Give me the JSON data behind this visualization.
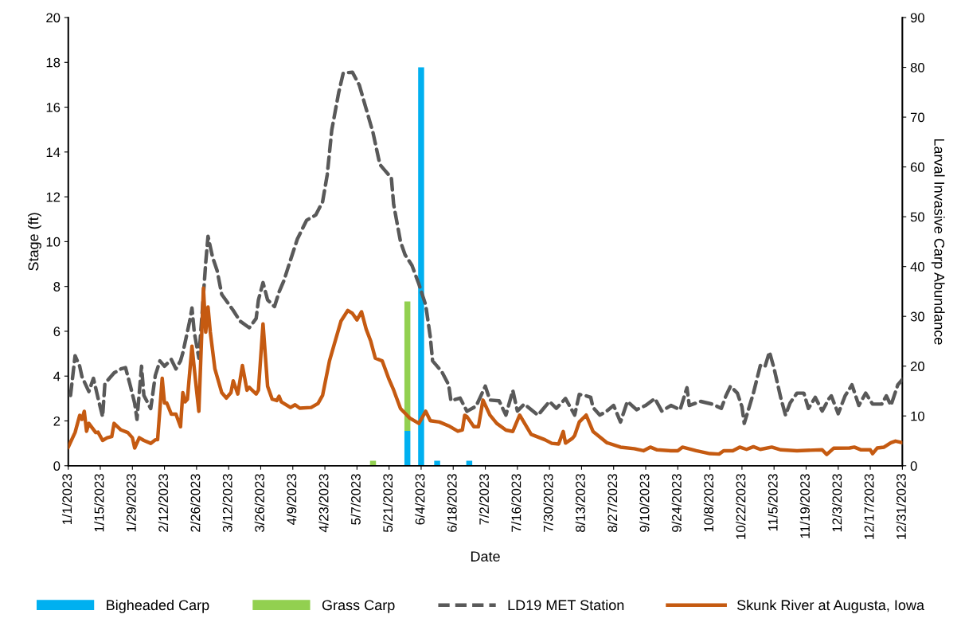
{
  "chart_data": {
    "type": "line",
    "xlabel": "Date",
    "ylabel": "Stage (ft)",
    "y2label": "Larval Invasive Carp Abundance",
    "xlim": [
      "2023-01-01",
      "2023-12-31"
    ],
    "xticks": [
      {
        "value": "2023-01-01",
        "label": "1/1/2023"
      },
      {
        "value": "2023-01-15",
        "label": "1/15/2023"
      },
      {
        "value": "2023-01-29",
        "label": "1/29/2023"
      },
      {
        "value": "2023-02-12",
        "label": "2/12/2023"
      },
      {
        "value": "2023-02-26",
        "label": "2/26/2023"
      },
      {
        "value": "2023-03-12",
        "label": "3/12/2023"
      },
      {
        "value": "2023-03-26",
        "label": "3/26/2023"
      },
      {
        "value": "2023-04-09",
        "label": "4/9/2023"
      },
      {
        "value": "2023-04-23",
        "label": "4/23/2023"
      },
      {
        "value": "2023-05-07",
        "label": "5/7/2023"
      },
      {
        "value": "2023-05-21",
        "label": "5/21/2023"
      },
      {
        "value": "2023-06-04",
        "label": "6/4/2023"
      },
      {
        "value": "2023-06-18",
        "label": "6/18/2023"
      },
      {
        "value": "2023-07-02",
        "label": "7/2/2023"
      },
      {
        "value": "2023-07-16",
        "label": "7/16/2023"
      },
      {
        "value": "2023-07-30",
        "label": "7/30/2023"
      },
      {
        "value": "2023-08-13",
        "label": "8/13/2023"
      },
      {
        "value": "2023-08-27",
        "label": "8/27/2023"
      },
      {
        "value": "2023-09-10",
        "label": "9/10/2023"
      },
      {
        "value": "2023-09-24",
        "label": "9/24/2023"
      },
      {
        "value": "2023-10-08",
        "label": "10/8/2023"
      },
      {
        "value": "2023-10-22",
        "label": "10/22/2023"
      },
      {
        "value": "2023-11-05",
        "label": "11/5/2023"
      },
      {
        "value": "2023-11-19",
        "label": "11/19/2023"
      },
      {
        "value": "2023-12-03",
        "label": "12/3/2023"
      },
      {
        "value": "2023-12-17",
        "label": "12/17/2023"
      },
      {
        "value": "2023-12-31",
        "label": "12/31/2023"
      }
    ],
    "ylim": [
      0,
      20
    ],
    "yticks": [
      0,
      2,
      4,
      6,
      8,
      10,
      12,
      14,
      16,
      18,
      20
    ],
    "y2lim": [
      0,
      90
    ],
    "y2ticks": [
      0,
      10,
      20,
      30,
      40,
      50,
      60,
      70,
      80,
      90
    ],
    "grid": false,
    "legend": "bottom",
    "marker": "none",
    "series": [
      {
        "name": "Bigheaded Carp",
        "type": "bar",
        "axis": "y2",
        "color": "#00b0f0",
        "x": [
          "2023-05-29",
          "2023-06-04",
          "2023-06-11",
          "2023-06-25"
        ],
        "values": [
          7,
          80,
          1,
          1
        ]
      },
      {
        "name": "Grass Carp",
        "type": "bar",
        "axis": "y2",
        "color": "#92d050",
        "x": [
          "2023-05-14",
          "2023-05-29"
        ],
        "values": [
          1,
          26
        ],
        "base": [
          0,
          7
        ]
      },
      {
        "name": "LD19 MET Station",
        "line_style": "dashed",
        "color": "#595959",
        "x": [
          "2023-01-02",
          "2023-01-04",
          "2023-01-06",
          "2023-01-07",
          "2023-01-10",
          "2023-01-12",
          "2023-01-14",
          "2023-01-16",
          "2023-01-17",
          "2023-01-21",
          "2023-01-24",
          "2023-01-26",
          "2023-01-28",
          "2023-01-30",
          "2023-01-31",
          "2023-02-02",
          "2023-02-03",
          "2023-02-06",
          "2023-02-08",
          "2023-02-10",
          "2023-02-12",
          "2023-02-15",
          "2023-02-17",
          "2023-02-19",
          "2023-02-20",
          "2023-02-23",
          "2023-02-24",
          "2023-02-25",
          "2023-02-27",
          "2023-03-01",
          "2023-03-02",
          "2023-03-03",
          "2023-03-05",
          "2023-03-07",
          "2023-03-09",
          "2023-03-12",
          "2023-03-14",
          "2023-03-17",
          "2023-03-21",
          "2023-03-24",
          "2023-03-25",
          "2023-03-27",
          "2023-03-29",
          "2023-04-01",
          "2023-04-03",
          "2023-04-05",
          "2023-04-08",
          "2023-04-11",
          "2023-04-15",
          "2023-04-19",
          "2023-04-22",
          "2023-04-24",
          "2023-04-26",
          "2023-04-29",
          "2023-05-01",
          "2023-05-05",
          "2023-05-08",
          "2023-05-11",
          "2023-05-14",
          "2023-05-17",
          "2023-05-19",
          "2023-05-22",
          "2023-05-23",
          "2023-05-26",
          "2023-05-28",
          "2023-05-31",
          "2023-06-03",
          "2023-06-06",
          "2023-06-08",
          "2023-06-09",
          "2023-06-13",
          "2023-06-16",
          "2023-06-17",
          "2023-06-21",
          "2023-06-24",
          "2023-06-28",
          "2023-07-02",
          "2023-07-04",
          "2023-07-08",
          "2023-07-11",
          "2023-07-14",
          "2023-07-16",
          "2023-07-19",
          "2023-07-25",
          "2023-07-30",
          "2023-08-02",
          "2023-08-06",
          "2023-08-10",
          "2023-08-12",
          "2023-08-15",
          "2023-08-17",
          "2023-08-18",
          "2023-08-21",
          "2023-08-24",
          "2023-08-27",
          "2023-08-30",
          "2023-09-02",
          "2023-09-06",
          "2023-09-10",
          "2023-09-14",
          "2023-09-17",
          "2023-09-21",
          "2023-09-25",
          "2023-09-28",
          "2023-09-29",
          "2023-10-04",
          "2023-10-09",
          "2023-10-13",
          "2023-10-15",
          "2023-10-17",
          "2023-10-20",
          "2023-10-22",
          "2023-10-23",
          "2023-10-27",
          "2023-10-30",
          "2023-11-01",
          "2023-11-03",
          "2023-11-05",
          "2023-11-08",
          "2023-11-10",
          "2023-11-12",
          "2023-11-15",
          "2023-11-18",
          "2023-11-20",
          "2023-11-23",
          "2023-11-26",
          "2023-11-29",
          "2023-11-30",
          "2023-12-03",
          "2023-12-06",
          "2023-12-09",
          "2023-12-12",
          "2023-12-15",
          "2023-12-18",
          "2023-12-22",
          "2023-12-24",
          "2023-12-26",
          "2023-12-29",
          "2023-12-31"
        ],
        "values": [
          3.14,
          4.91,
          4.44,
          3.97,
          3.31,
          3.9,
          3.02,
          2.19,
          3.67,
          4.14,
          4.32,
          4.38,
          3.61,
          2.78,
          2.07,
          4.44,
          3.14,
          2.55,
          4.03,
          4.68,
          4.44,
          4.74,
          4.32,
          4.68,
          5.03,
          6.45,
          7.04,
          5.96,
          4.8,
          7.63,
          9.06,
          10.24,
          9.3,
          8.7,
          7.64,
          7.22,
          6.93,
          6.45,
          6.16,
          6.57,
          7.4,
          8.17,
          7.4,
          7.1,
          7.75,
          8.23,
          9.18,
          10.12,
          10.95,
          11.19,
          11.78,
          12.97,
          14.98,
          16.64,
          17.52,
          17.56,
          16.99,
          15.93,
          14.86,
          13.44,
          13.2,
          12.85,
          11.66,
          10.0,
          9.41,
          8.94,
          8.11,
          7.17,
          5.74,
          4.68,
          4.2,
          3.61,
          2.9,
          3.02,
          2.43,
          2.66,
          3.55,
          2.93,
          2.9,
          2.26,
          3.36,
          2.44,
          2.75,
          2.26,
          2.87,
          2.56,
          3.0,
          2.26,
          3.18,
          3.12,
          3.05,
          2.6,
          2.26,
          2.44,
          2.69,
          1.95,
          2.87,
          2.5,
          2.69,
          3.0,
          2.44,
          2.69,
          2.5,
          3.48,
          2.69,
          2.87,
          2.75,
          2.56,
          3.12,
          3.55,
          3.24,
          2.63,
          1.89,
          3.24,
          4.47,
          4.41,
          5.08,
          4.35,
          3.0,
          2.26,
          2.8,
          3.24,
          3.24,
          2.56,
          3.05,
          2.44,
          3.0,
          3.12,
          2.32,
          3.12,
          3.61,
          2.69,
          3.24,
          2.75,
          2.75,
          3.12,
          2.69,
          3.61,
          3.85
        ]
      },
      {
        "name": "Skunk River at Augusta, Iowa",
        "line_style": "solid",
        "color": "#c55a11",
        "x": [
          "2023-01-01",
          "2023-01-04",
          "2023-01-06",
          "2023-01-07",
          "2023-01-08",
          "2023-01-09",
          "2023-01-10",
          "2023-01-13",
          "2023-01-14",
          "2023-01-16",
          "2023-01-18",
          "2023-01-20",
          "2023-01-21",
          "2023-01-24",
          "2023-01-27",
          "2023-01-29",
          "2023-01-30",
          "2023-02-01",
          "2023-02-03",
          "2023-02-06",
          "2023-02-08",
          "2023-02-09",
          "2023-02-11",
          "2023-02-12",
          "2023-02-13",
          "2023-02-15",
          "2023-02-17",
          "2023-02-19",
          "2023-02-20",
          "2023-02-21",
          "2023-02-22",
          "2023-02-24",
          "2023-02-26",
          "2023-02-27",
          "2023-03-01",
          "2023-03-02",
          "2023-03-03",
          "2023-03-04",
          "2023-03-06",
          "2023-03-09",
          "2023-03-11",
          "2023-03-13",
          "2023-03-14",
          "2023-03-16",
          "2023-03-18",
          "2023-03-20",
          "2023-03-21",
          "2023-03-24",
          "2023-03-25",
          "2023-03-27",
          "2023-03-29",
          "2023-03-31",
          "2023-04-02",
          "2023-04-03",
          "2023-04-04",
          "2023-04-08",
          "2023-04-10",
          "2023-04-12",
          "2023-04-17",
          "2023-04-20",
          "2023-04-22",
          "2023-04-25",
          "2023-04-27",
          "2023-04-30",
          "2023-05-03",
          "2023-05-05",
          "2023-05-07",
          "2023-05-09",
          "2023-05-11",
          "2023-05-13",
          "2023-05-15",
          "2023-05-18",
          "2023-05-21",
          "2023-05-23",
          "2023-05-26",
          "2023-05-30",
          "2023-06-03",
          "2023-06-06",
          "2023-06-08",
          "2023-06-12",
          "2023-06-16",
          "2023-06-20",
          "2023-06-22",
          "2023-06-23",
          "2023-06-24",
          "2023-06-27",
          "2023-06-29",
          "2023-07-01",
          "2023-07-04",
          "2023-07-07",
          "2023-07-11",
          "2023-07-14",
          "2023-07-17",
          "2023-07-22",
          "2023-07-28",
          "2023-07-31",
          "2023-08-03",
          "2023-08-05",
          "2023-08-06",
          "2023-08-09",
          "2023-08-10",
          "2023-08-12",
          "2023-08-15",
          "2023-08-18",
          "2023-08-24",
          "2023-08-30",
          "2023-09-05",
          "2023-09-09",
          "2023-09-12",
          "2023-09-15",
          "2023-09-21",
          "2023-09-24",
          "2023-09-26",
          "2023-10-02",
          "2023-10-08",
          "2023-10-12",
          "2023-10-14",
          "2023-10-18",
          "2023-10-21",
          "2023-10-24",
          "2023-10-27",
          "2023-10-30",
          "2023-11-04",
          "2023-11-08",
          "2023-11-15",
          "2023-11-26",
          "2023-11-28",
          "2023-12-01",
          "2023-12-08",
          "2023-12-10",
          "2023-12-13",
          "2023-12-17",
          "2023-12-18",
          "2023-12-20",
          "2023-12-23",
          "2023-12-26",
          "2023-12-28",
          "2023-12-31"
        ],
        "values": [
          0.83,
          1.49,
          2.25,
          2.07,
          2.43,
          1.54,
          1.89,
          1.48,
          1.5,
          1.13,
          1.25,
          1.3,
          1.89,
          1.6,
          1.48,
          1.25,
          0.79,
          1.25,
          1.13,
          1.0,
          1.16,
          1.16,
          3.9,
          2.8,
          2.8,
          2.3,
          2.3,
          1.74,
          3.26,
          2.85,
          2.97,
          5.33,
          3.37,
          2.43,
          7.93,
          5.96,
          7.08,
          5.96,
          4.32,
          3.26,
          3.02,
          3.26,
          3.79,
          3.2,
          4.47,
          3.37,
          3.5,
          3.2,
          3.37,
          6.33,
          3.55,
          2.97,
          2.91,
          3.1,
          2.85,
          2.6,
          2.72,
          2.57,
          2.6,
          2.78,
          3.14,
          4.68,
          5.39,
          6.45,
          6.93,
          6.8,
          6.51,
          6.87,
          6.1,
          5.56,
          4.8,
          4.68,
          3.85,
          3.38,
          2.55,
          2.13,
          1.89,
          2.43,
          2.01,
          1.95,
          1.78,
          1.54,
          1.6,
          2.25,
          2.19,
          1.74,
          1.74,
          2.93,
          2.26,
          1.89,
          1.59,
          1.53,
          2.26,
          1.4,
          1.16,
          1.0,
          0.97,
          1.53,
          1.01,
          1.22,
          1.35,
          1.95,
          2.26,
          1.53,
          1.03,
          0.83,
          0.76,
          0.67,
          0.83,
          0.71,
          0.67,
          0.67,
          0.83,
          0.67,
          0.54,
          0.52,
          0.67,
          0.67,
          0.83,
          0.73,
          0.85,
          0.73,
          0.83,
          0.71,
          0.67,
          0.71,
          0.5,
          0.78,
          0.79,
          0.83,
          0.71,
          0.71,
          0.54,
          0.79,
          0.83,
          1.03,
          1.1,
          1.03
        ]
      }
    ]
  }
}
